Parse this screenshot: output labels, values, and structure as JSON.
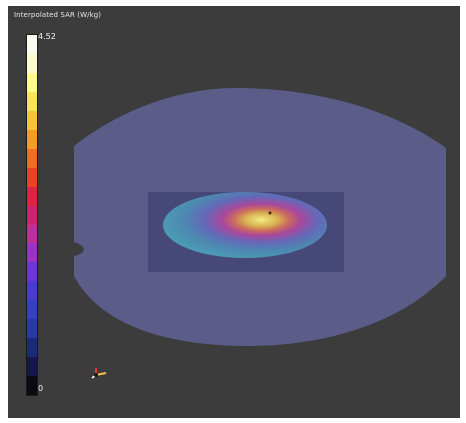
{
  "legend": {
    "title": "Interpolated SAR (W/kg)",
    "max_label": "4.52",
    "min_label": "0",
    "colormap_top_to_bottom": [
      "#fbfbf0",
      "#fbfbd2",
      "#fbfb8c",
      "#f8e55a",
      "#f7c436",
      "#f39c26",
      "#f06d1f",
      "#ea4323",
      "#e02045",
      "#d12470",
      "#bd2f9a",
      "#9b33c4",
      "#6e36d6",
      "#4a3ccf",
      "#343fc2",
      "#263aa3",
      "#1b2a78",
      "#14194a",
      "#0a0a14"
    ]
  },
  "colors": {
    "background": "#3c3c3c",
    "phantom": "#5a5c86",
    "phantom_grid": "#62648f",
    "inner_box": "#46487a",
    "hotspot_outer": "#4b87b4",
    "hotspot_ring": "#b24a96",
    "hotspot_inner": "#d8b24c",
    "hotspot_core": "#efe27a"
  },
  "axes_triad_icon": "xyz-orientation-axes"
}
